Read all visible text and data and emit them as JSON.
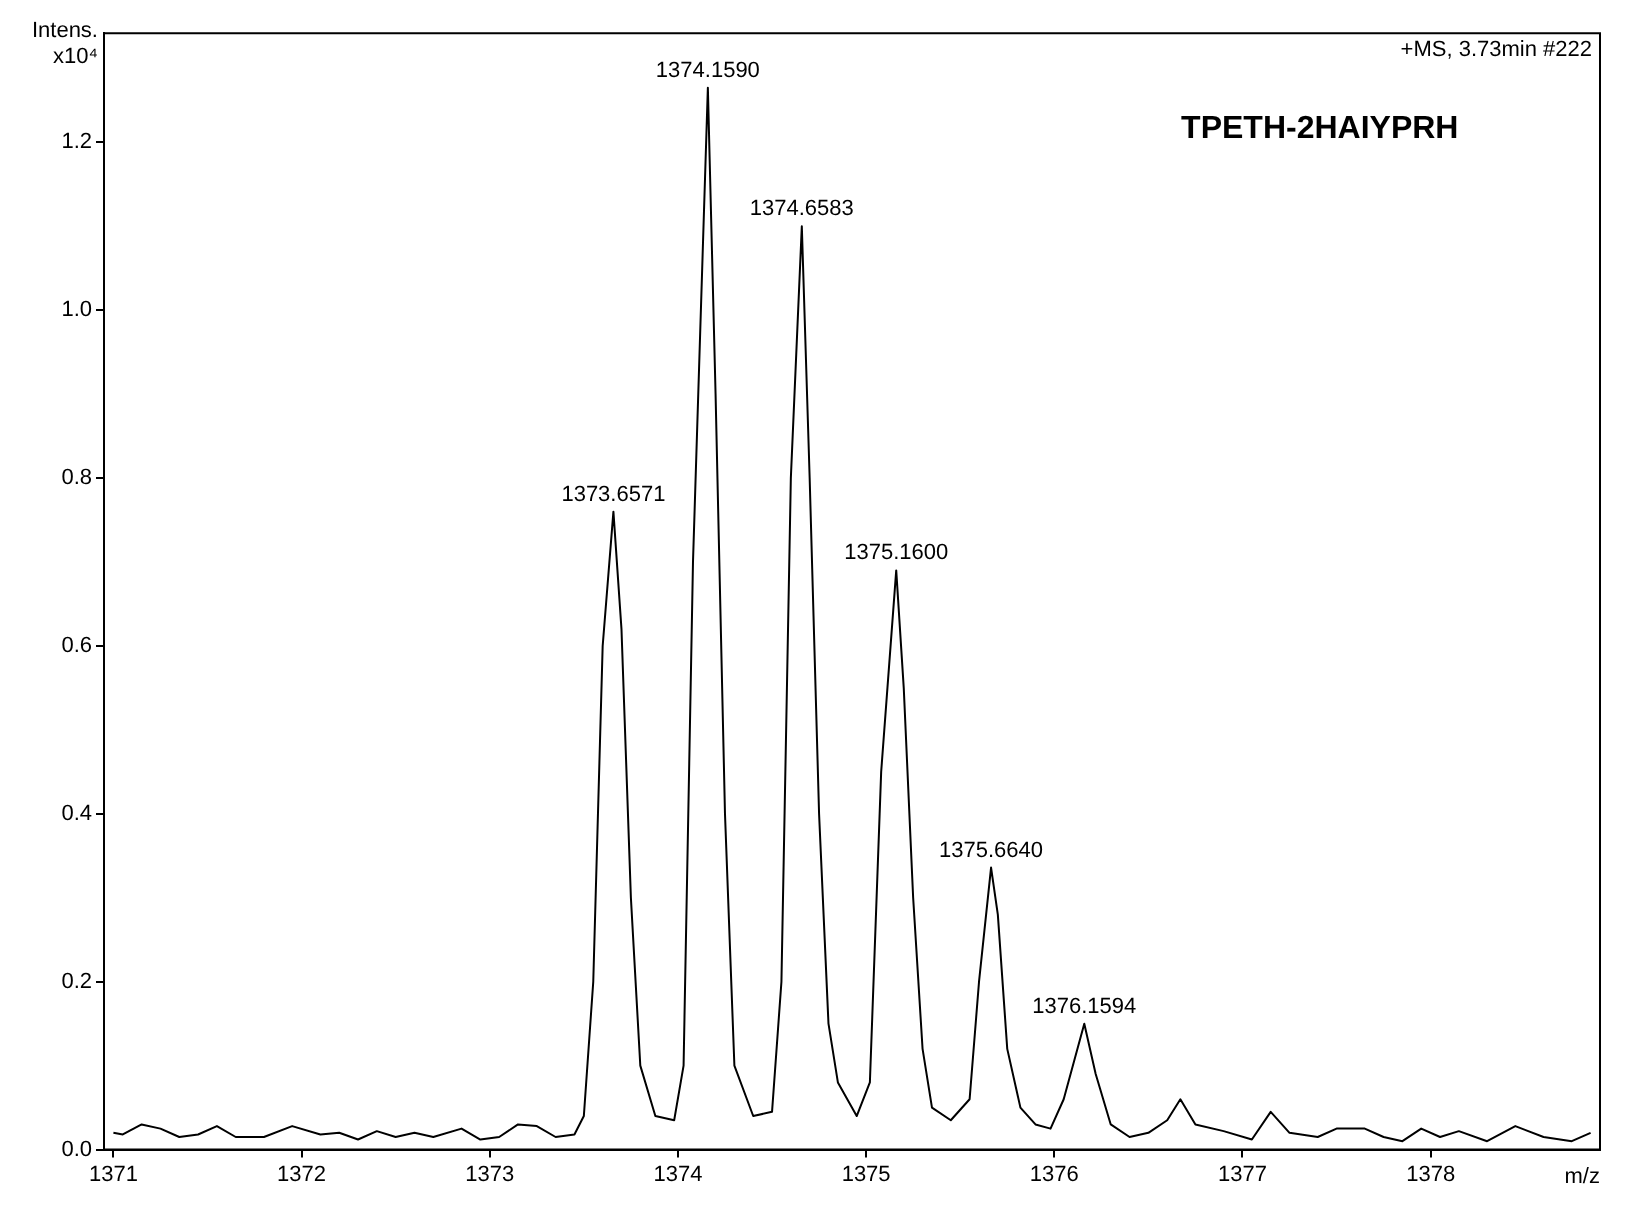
{
  "chart_data": {
    "type": "line",
    "xlabel": "m/z",
    "ylabel": "Intens. x10⁴",
    "annotations": [
      "+MS, 3.73min #222",
      "TPETH-2HAIYPRH",
      {
        "text": "1373.6571",
        "x": 1373.6571,
        "y": 0.76
      },
      {
        "text": "1374.1590",
        "x": 1374.159,
        "y": 1.265
      },
      {
        "text": "1374.6583",
        "x": 1374.6583,
        "y": 1.1
      },
      {
        "text": "1375.1600",
        "x": 1375.16,
        "y": 0.69
      },
      {
        "text": "1375.6640",
        "x": 1375.664,
        "y": 0.336
      },
      {
        "text": "1376.1594",
        "x": 1376.1594,
        "y": 0.15
      }
    ],
    "xlim": [
      1370.95,
      1378.9
    ],
    "xticks": [
      1371,
      1372,
      1373,
      1374,
      1375,
      1376,
      1377,
      1378
    ],
    "ylim": [
      0,
      1.33
    ],
    "yticks": [
      {
        "value": 0,
        "label": "0.0"
      },
      {
        "value": 0.2,
        "label": "0.2"
      },
      {
        "value": 0.4,
        "label": "0.4"
      },
      {
        "value": 0.6,
        "label": "0.6"
      },
      {
        "value": 0.8,
        "label": "0.8"
      },
      {
        "value": 1.0,
        "label": "1.0"
      },
      {
        "value": 1.2,
        "label": "1.2"
      }
    ],
    "grid": false,
    "legend": false,
    "marker": "none",
    "line_style": "solid",
    "series": [
      {
        "color": "#000000",
        "x": [
          1371.0,
          1371.05,
          1371.15,
          1371.25,
          1371.35,
          1371.45,
          1371.55,
          1371.65,
          1371.8,
          1371.95,
          1372.1,
          1372.2,
          1372.3,
          1372.4,
          1372.5,
          1372.6,
          1372.7,
          1372.85,
          1372.95,
          1373.05,
          1373.15,
          1373.25,
          1373.35,
          1373.45,
          1373.5,
          1373.55,
          1373.6,
          1373.6571,
          1373.7,
          1373.75,
          1373.8,
          1373.88,
          1373.98,
          1374.03,
          1374.08,
          1374.159,
          1374.2,
          1374.25,
          1374.3,
          1374.4,
          1374.5,
          1374.55,
          1374.6,
          1374.6583,
          1374.7,
          1374.75,
          1374.8,
          1374.85,
          1374.95,
          1375.02,
          1375.08,
          1375.16,
          1375.2,
          1375.25,
          1375.3,
          1375.35,
          1375.45,
          1375.55,
          1375.6,
          1375.664,
          1375.7,
          1375.75,
          1375.82,
          1375.9,
          1375.98,
          1376.05,
          1376.1594,
          1376.22,
          1376.3,
          1376.4,
          1376.5,
          1376.6,
          1376.67,
          1376.75,
          1376.9,
          1377.05,
          1377.15,
          1377.25,
          1377.4,
          1377.5,
          1377.65,
          1377.75,
          1377.85,
          1377.95,
          1378.05,
          1378.15,
          1378.3,
          1378.45,
          1378.6,
          1378.75,
          1378.85
        ],
        "values": [
          0.02,
          0.018,
          0.03,
          0.025,
          0.015,
          0.018,
          0.028,
          0.015,
          0.015,
          0.028,
          0.018,
          0.02,
          0.012,
          0.022,
          0.015,
          0.02,
          0.015,
          0.025,
          0.012,
          0.015,
          0.03,
          0.028,
          0.015,
          0.018,
          0.04,
          0.2,
          0.6,
          0.76,
          0.62,
          0.3,
          0.1,
          0.04,
          0.035,
          0.1,
          0.7,
          1.265,
          0.9,
          0.4,
          0.1,
          0.04,
          0.045,
          0.2,
          0.8,
          1.1,
          0.8,
          0.4,
          0.15,
          0.08,
          0.04,
          0.08,
          0.45,
          0.69,
          0.55,
          0.3,
          0.12,
          0.05,
          0.035,
          0.06,
          0.2,
          0.336,
          0.28,
          0.12,
          0.05,
          0.03,
          0.025,
          0.06,
          0.15,
          0.09,
          0.03,
          0.015,
          0.02,
          0.035,
          0.06,
          0.03,
          0.022,
          0.012,
          0.045,
          0.02,
          0.015,
          0.025,
          0.025,
          0.015,
          0.01,
          0.025,
          0.015,
          0.022,
          0.01,
          0.028,
          0.015,
          0.01,
          0.02
        ]
      }
    ]
  }
}
